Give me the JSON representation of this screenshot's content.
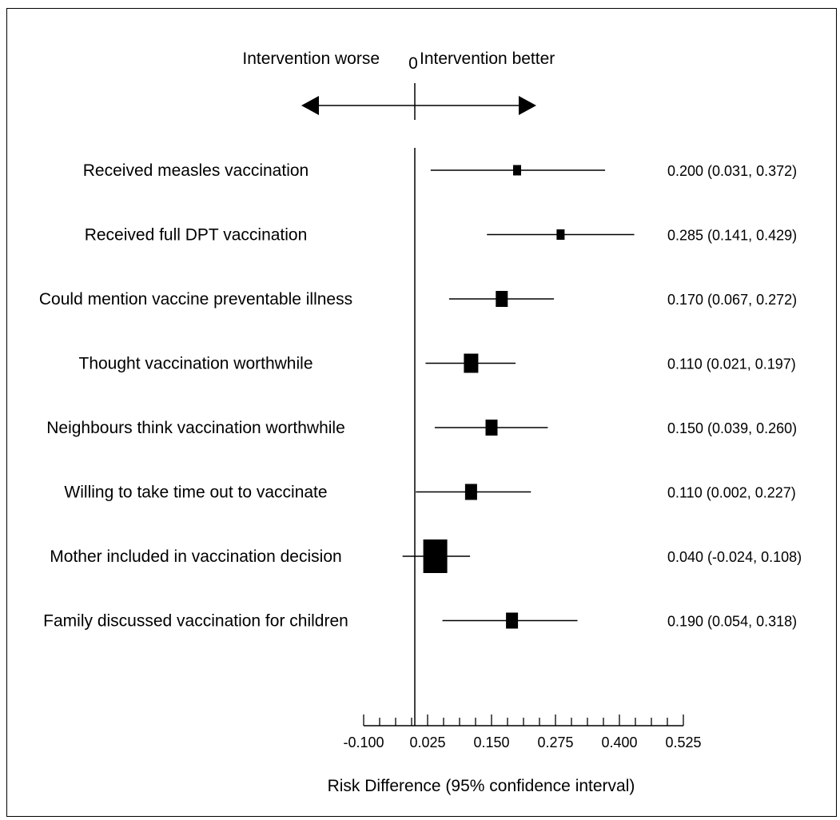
{
  "chart_data": {
    "type": "forest",
    "header": {
      "left": "Intervention worse",
      "zero": "0",
      "right": "Intervention better"
    },
    "xlabel": "Risk Difference (95% confidence interval)",
    "xlim": [
      -0.1,
      0.525
    ],
    "xticks": [
      -0.1,
      0.025,
      0.15,
      0.275,
      0.4,
      0.525
    ],
    "xtick_labels": [
      "-0.100",
      "0.025",
      "0.150",
      "0.275",
      "0.400",
      "0.525"
    ],
    "reference_line": 0,
    "rows": [
      {
        "label": "Received measles vaccination",
        "estimate": 0.2,
        "lower": 0.031,
        "upper": 0.372,
        "ci_text": "0.200 (0.031, 0.372)",
        "weight": "small"
      },
      {
        "label": "Received full DPT vaccination",
        "estimate": 0.285,
        "lower": 0.141,
        "upper": 0.429,
        "ci_text": "0.285 (0.141, 0.429)",
        "weight": "small"
      },
      {
        "label": "Could mention vaccine preventable illness",
        "estimate": 0.17,
        "lower": 0.067,
        "upper": 0.272,
        "ci_text": "0.170 (0.067, 0.272)",
        "weight": "medium"
      },
      {
        "label": "Thought vaccination worthwhile",
        "estimate": 0.11,
        "lower": 0.021,
        "upper": 0.197,
        "ci_text": "0.110 (0.021, 0.197)",
        "weight": "large"
      },
      {
        "label": "Neighbours think vaccination worthwhile",
        "estimate": 0.15,
        "lower": 0.039,
        "upper": 0.26,
        "ci_text": "0.150 (0.039, 0.260)",
        "weight": "medium"
      },
      {
        "label": "Willing to take time out to vaccinate",
        "estimate": 0.11,
        "lower": 0.002,
        "upper": 0.227,
        "ci_text": "0.110 (0.002, 0.227)",
        "weight": "medium"
      },
      {
        "label": "Mother included in vaccination decision",
        "estimate": 0.04,
        "lower": -0.024,
        "upper": 0.108,
        "ci_text": "0.040 (-0.024, 0.108)",
        "weight": "xlarge"
      },
      {
        "label": "Family discussed vaccination for children",
        "estimate": 0.19,
        "lower": 0.054,
        "upper": 0.318,
        "ci_text": "0.190 (0.054, 0.318)",
        "weight": "medium"
      }
    ]
  }
}
